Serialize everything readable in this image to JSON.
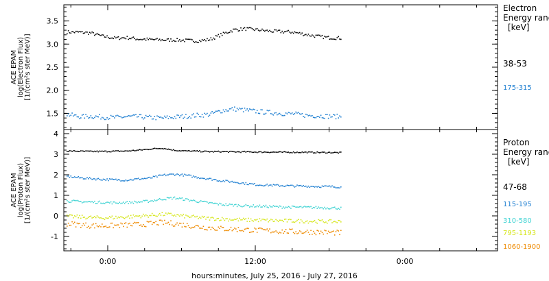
{
  "xlabel": "hours:minutes, July 25, 2016 - July 27, 2016",
  "x_ticks": [
    "0:00",
    "12:00",
    "0:00"
  ],
  "chart_data": [
    {
      "type": "scatter",
      "panel": "electron",
      "ylabel_lines": [
        "ACE EPAM",
        "log(Electron Flux)",
        "[1/(cm²s ster MeV)]"
      ],
      "ylim": [
        1.15,
        3.85
      ],
      "yticks": [
        1.5,
        2.0,
        2.5,
        3.0,
        3.5
      ],
      "ytick_labels": [
        "1.5",
        "2.0",
        "2.5",
        "3.0",
        "3.5"
      ],
      "legend_title": [
        "Electron",
        "Energy ranges",
        "[keV]"
      ],
      "series": [
        {
          "name": "38-53",
          "color": "#000000",
          "values": [
            3.27,
            3.27,
            3.25,
            3.18,
            3.14,
            3.15,
            3.12,
            3.11,
            3.1,
            3.1,
            3.09,
            3.08,
            3.11,
            3.22,
            3.32,
            3.34,
            3.32,
            3.29,
            3.28,
            3.27,
            3.22,
            3.18,
            3.15,
            3.14
          ]
        },
        {
          "name": "175-315",
          "color": "#1f7fd1",
          "values": [
            1.49,
            1.44,
            1.45,
            1.43,
            1.42,
            1.44,
            1.44,
            1.42,
            1.41,
            1.43,
            1.45,
            1.47,
            1.49,
            1.57,
            1.61,
            1.58,
            1.55,
            1.53,
            1.51,
            1.5,
            1.47,
            1.46,
            1.45,
            1.44
          ]
        }
      ]
    },
    {
      "type": "scatter",
      "panel": "proton",
      "ylabel_lines": [
        "ACE EPAM",
        "log(Proton Flux)",
        "[1/(cm²s ster MeV)]"
      ],
      "ylim": [
        -1.7,
        4.2
      ],
      "yticks": [
        -1,
        0,
        1,
        2,
        3,
        4
      ],
      "ytick_labels": [
        "-1",
        "0",
        "1",
        "2",
        "3",
        "4"
      ],
      "legend_title": [
        "Proton",
        "Energy ranges",
        "[keV]"
      ],
      "series": [
        {
          "name": "47-68",
          "color": "#000000",
          "values": [
            3.18,
            3.17,
            3.16,
            3.16,
            3.17,
            3.18,
            3.22,
            3.28,
            3.32,
            3.22,
            3.18,
            3.17,
            3.15,
            3.15,
            3.14,
            3.14,
            3.13,
            3.13,
            3.12,
            3.12,
            3.12,
            3.11,
            3.11,
            3.1
          ]
        },
        {
          "name": "115-195",
          "color": "#1f7fd1",
          "values": [
            1.95,
            1.88,
            1.84,
            1.8,
            1.78,
            1.77,
            1.82,
            1.87,
            2.0,
            2.05,
            2.0,
            1.9,
            1.82,
            1.73,
            1.68,
            1.6,
            1.54,
            1.52,
            1.5,
            1.48,
            1.47,
            1.46,
            1.45,
            1.43
          ]
        },
        {
          "name": "310-580",
          "color": "#3fd3d3",
          "values": [
            0.75,
            0.72,
            0.7,
            0.68,
            0.66,
            0.68,
            0.7,
            0.75,
            0.85,
            0.9,
            0.82,
            0.73,
            0.65,
            0.58,
            0.55,
            0.52,
            0.5,
            0.48,
            0.46,
            0.45,
            0.44,
            0.43,
            0.42,
            0.4
          ]
        },
        {
          "name": "795-1193",
          "color": "#d6e61c",
          "values": [
            0.0,
            -0.02,
            -0.05,
            -0.07,
            -0.05,
            -0.03,
            0.02,
            0.05,
            0.1,
            0.07,
            0.0,
            -0.05,
            -0.1,
            -0.12,
            -0.15,
            -0.17,
            -0.18,
            -0.2,
            -0.21,
            -0.22,
            -0.23,
            -0.24,
            -0.25,
            -0.25
          ]
        },
        {
          "name": "1060-1900",
          "color": "#ee8a00",
          "values": [
            -0.35,
            -0.4,
            -0.45,
            -0.45,
            -0.45,
            -0.42,
            -0.4,
            -0.35,
            -0.3,
            -0.35,
            -0.42,
            -0.5,
            -0.55,
            -0.6,
            -0.62,
            -0.65,
            -0.68,
            -0.7,
            -0.72,
            -0.74,
            -0.75,
            -0.76,
            -0.78,
            -0.8
          ]
        }
      ]
    }
  ]
}
